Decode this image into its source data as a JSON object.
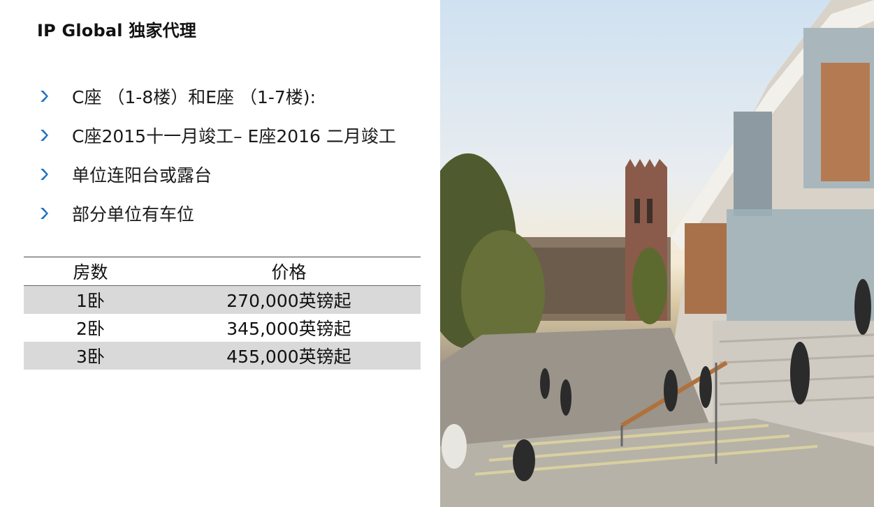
{
  "title": "IP Global 独家代理",
  "bullets": [
    "C座 （1-8楼）和E座 （1-7楼):",
    "C座2015十一月竣工– E座2016 二月竣工",
    "单位连阳台或露台",
    "部分单位有车位"
  ],
  "table": {
    "headers": [
      "房数",
      "价格"
    ],
    "rows": [
      [
        "1卧",
        "270,000英镑起"
      ],
      [
        "2卧",
        "345,000英镑起"
      ],
      [
        "3卧",
        "455,000英镑起"
      ]
    ]
  },
  "colors": {
    "bullet": "#1f6fbf",
    "row_shade": "#d9d9d9"
  },
  "icons": {
    "bullet": "chevron-right-icon"
  }
}
